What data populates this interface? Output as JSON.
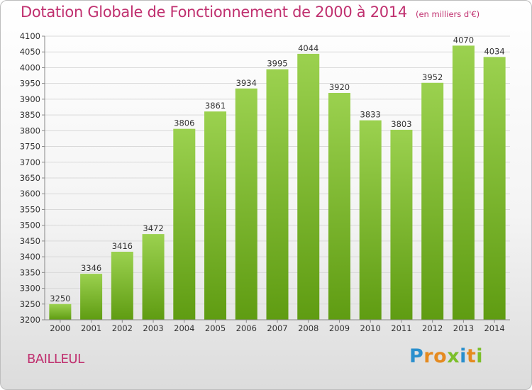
{
  "title": "Dotation Globale de Fonctionnement de 2000 à 2014",
  "unit_note": "(en milliers d'€)",
  "commune": "BAILLEUL",
  "logo": {
    "text": "Proxiti",
    "letters": [
      {
        "char": "P",
        "color": "#2a8fcd"
      },
      {
        "char": "r",
        "color": "#e58a1f"
      },
      {
        "char": "o",
        "color": "#e58a1f"
      },
      {
        "char": "x",
        "color": "#7cbf2a"
      },
      {
        "char": "i",
        "color": "#2a8fcd"
      },
      {
        "char": "t",
        "color": "#e58a1f"
      },
      {
        "char": "i",
        "color": "#7cbf2a"
      }
    ]
  },
  "colors": {
    "title": "#c0306f",
    "bar_top": "#9bd14f",
    "bar_bottom": "#5f9c12",
    "grid": "#d9d9d9"
  },
  "chart_data": {
    "type": "bar",
    "title": "Dotation Globale de Fonctionnement de 2000 à 2014",
    "subtitle": "(en milliers d'€)",
    "categories": [
      "2000",
      "2001",
      "2002",
      "2003",
      "2004",
      "2005",
      "2006",
      "2007",
      "2008",
      "2009",
      "2010",
      "2011",
      "2012",
      "2013",
      "2014"
    ],
    "values": [
      3250,
      3346,
      3416,
      3472,
      3806,
      3861,
      3934,
      3995,
      4044,
      3920,
      3833,
      3803,
      3952,
      4070,
      4034
    ],
    "ylim": [
      3200,
      4100
    ],
    "ytick_step": 50,
    "grid": true,
    "data_labels": true
  }
}
